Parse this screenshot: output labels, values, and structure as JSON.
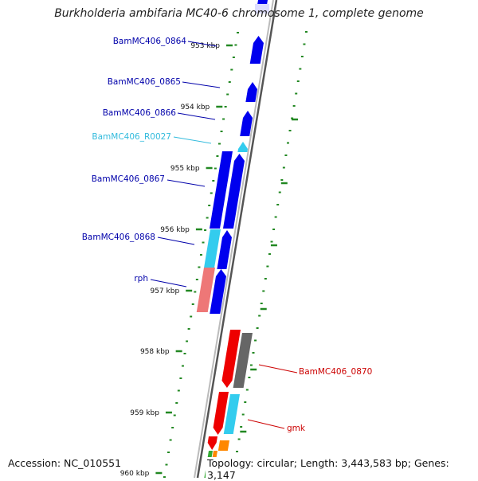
{
  "title": "Burkholderia ambifaria MC40-6 chromosome 1, complete genome",
  "footer": {
    "accession_label": "Accession:",
    "accession": "NC_010551",
    "topology_label": "Topology:",
    "topology": "circular",
    "length_label": "Length:",
    "length": "3,443,583 bp",
    "genes_label": "Genes:",
    "genes": "3,147"
  },
  "colors": {
    "cds_forward": "#0000ee",
    "cds_reverse": "#ee0000",
    "trna": "#33ccee",
    "rrna_like": "#ee7777",
    "pseudo": "#666666",
    "misc": "#ff8800",
    "ticks": "#228822",
    "backbone": "#888888"
  },
  "scale": {
    "unit": "kbp",
    "labels": [
      "953 kbp",
      "954 kbp",
      "955 kbp",
      "956 kbp",
      "957 kbp",
      "958 kbp",
      "959 kbp",
      "960 kbp"
    ]
  },
  "gene_labels": [
    {
      "name": "BamMC406_0864",
      "color": "#0000aa"
    },
    {
      "name": "BamMC406_0865",
      "color": "#0000aa"
    },
    {
      "name": "BamMC406_0866",
      "color": "#0000aa"
    },
    {
      "name": "BamMC406_R0027",
      "color": "#33bbdd"
    },
    {
      "name": "BamMC406_0867",
      "color": "#0000aa"
    },
    {
      "name": "BamMC406_0868",
      "color": "#0000aa"
    },
    {
      "name": "rph",
      "color": "#0000aa"
    },
    {
      "name": "BamMC406_0870",
      "color": "#cc0000"
    },
    {
      "name": "gmk",
      "color": "#cc0000"
    }
  ]
}
